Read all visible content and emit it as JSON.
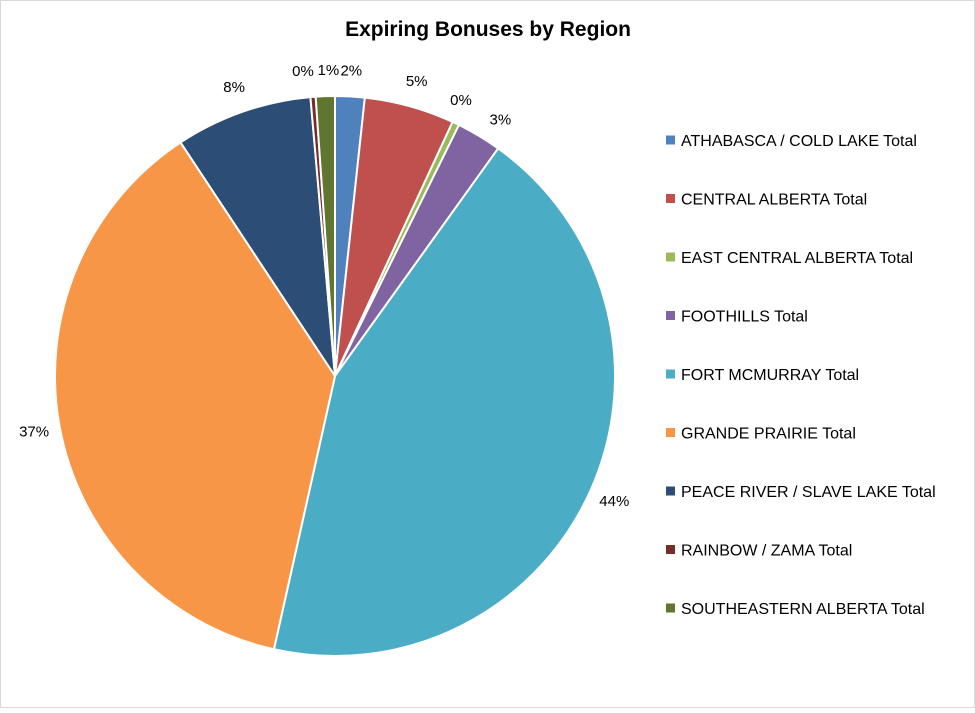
{
  "chart_data": {
    "type": "pie",
    "title": "Expiring Bonuses by Region",
    "legend_position": "right",
    "start_angle_deg": 0,
    "direction": "clockwise",
    "slices": [
      {
        "name": "ATHABASCA / COLD LAKE Total",
        "value": 1.7,
        "label": "2%",
        "color": "#4F81BD"
      },
      {
        "name": "CENTRAL ALBERTA Total",
        "value": 5.2,
        "label": "5%",
        "color": "#C0504D"
      },
      {
        "name": "EAST CENTRAL ALBERTA Total",
        "value": 0.4,
        "label": "0%",
        "color": "#9BBB59"
      },
      {
        "name": "FOOTHILLS Total",
        "value": 2.6,
        "label": "3%",
        "color": "#8064A2"
      },
      {
        "name": "FORT MCMURRAY Total",
        "value": 43.6,
        "label": "44%",
        "color": "#4BACC6"
      },
      {
        "name": "GRANDE PRAIRIE Total",
        "value": 37.2,
        "label": "37%",
        "color": "#F79646"
      },
      {
        "name": "PEACE RIVER / SLAVE LAKE Total",
        "value": 7.9,
        "label": "8%",
        "color": "#2C4D75"
      },
      {
        "name": "RAINBOW / ZAMA Total",
        "value": 0.3,
        "label": "0%",
        "color": "#772C2A"
      },
      {
        "name": "SOUTHEASTERN ALBERTA Total",
        "value": 1.1,
        "label": "1%",
        "color": "#5F7530"
      }
    ]
  }
}
